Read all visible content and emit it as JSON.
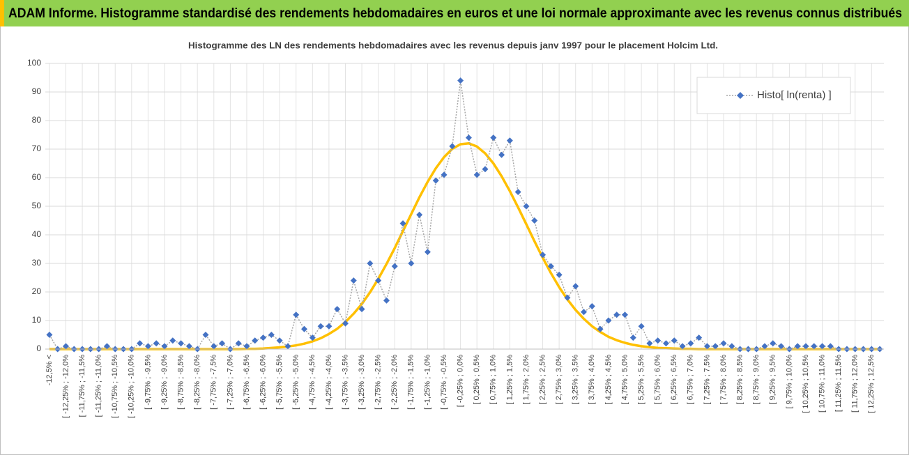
{
  "header": {
    "title": "ADAM Informe. Histogramme standardisé des rendements hebdomadaires en euros et une loi normale approximante avec les revenus connus distribués"
  },
  "chart_data": {
    "type": "line",
    "title": "Histogramme  des LN des rendements hebdomadaires avec les revenus depuis janv 1997 pour le placement Holcim Ltd.",
    "categories": [
      "-12,5% <",
      null,
      "[ -12,25% ; -12,0%",
      null,
      "[ -11,75% ; -11,5%",
      null,
      "[ -11,25% ; -11,0%",
      null,
      "[ -10,75% ; -10,5%",
      null,
      "[ -10,25% ; -10,0%",
      null,
      "[ -9,75% ; -9,5%",
      null,
      "[ -9,25% ; -9,0%",
      null,
      "[ -8,75% ; -8,5%",
      null,
      "[ -8,25% ; -8,0%",
      null,
      "[ -7,75% ; -7,5%",
      null,
      "[ -7,25% ; -7,0%",
      null,
      "[ -6,75% ; -6,5%",
      null,
      "[ -6,25% ; -6,0%",
      null,
      "[ -5,75% ; -5,5%",
      null,
      "[ -5,25% ; -5,0%",
      null,
      "[ -4,75% ; -4,5%",
      null,
      "[ -4,25% ; -4,0%",
      null,
      "[ -3,75% ; -3,5%",
      null,
      "[ -3,25% ; -3,0%",
      null,
      "[ -2,75% ; -2,5%",
      null,
      "[ -2,25% ; -2,0%",
      null,
      "[ -1,75% ; -1,5%",
      null,
      "[ -1,25% ; -1,0%",
      null,
      "[ -0,75% ; -0,5%",
      null,
      "[ -0,25% ; 0,0%",
      null,
      "[ 0,25% ; 0,5%",
      null,
      "[ 0,75% ; 1,0%",
      null,
      "[ 1,25% ; 1,5%",
      null,
      "[ 1,75% ; 2,0%",
      null,
      "[ 2,25% ; 2,5%",
      null,
      "[ 2,75% ; 3,0%",
      null,
      "[ 3,25% ; 3,5%",
      null,
      "[ 3,75% ; 4,0%",
      null,
      "[ 4,25% ; 4,5%",
      null,
      "[ 4,75% ; 5,0%",
      null,
      "[ 5,25% ; 5,5%",
      null,
      "[ 5,75% ; 6,0%",
      null,
      "[ 6,25% ; 6,5%",
      null,
      "[ 6,75% ; 7,0%",
      null,
      "[ 7,25% ; 7,5%",
      null,
      "[ 7,75% ; 8,0%",
      null,
      "[ 8,25% ; 8,5%",
      null,
      "[ 8,75% ; 9,0%",
      null,
      "[ 9,25% ; 9,5%",
      null,
      "[ 9,75% ; 10,0%",
      null,
      "[ 10,25% ; 10,5%",
      null,
      "[ 10,75% ; 11,0%",
      null,
      "[ 11,25% ; 11,5%",
      null,
      "[ 11,75% ; 12,0%",
      null,
      "[ 12,25% ; 12,5%",
      null
    ],
    "series": [
      {
        "name": "Histo[ ln(renta) ]",
        "color": "#4472c4",
        "line_color": "#a5a5a5",
        "values": [
          5,
          0,
          1,
          0,
          0,
          0,
          0,
          1,
          0,
          0,
          0,
          2,
          1,
          2,
          1,
          3,
          2,
          1,
          0,
          5,
          1,
          2,
          0,
          2,
          1,
          3,
          4,
          5,
          3,
          1,
          12,
          7,
          4,
          8,
          8,
          14,
          9,
          24,
          14,
          30,
          24,
          17,
          29,
          44,
          30,
          47,
          34,
          59,
          61,
          71,
          94,
          74,
          61,
          63,
          74,
          68,
          73,
          55,
          50,
          45,
          33,
          29,
          26,
          18,
          22,
          13,
          15,
          7,
          10,
          12,
          12,
          4,
          8,
          2,
          3,
          2,
          3,
          1,
          2,
          4,
          1,
          1,
          2,
          1,
          0,
          0,
          0,
          1,
          2,
          1,
          0,
          1,
          1,
          1,
          1,
          1,
          0,
          0,
          0,
          0,
          0,
          0
        ]
      },
      {
        "color": "#ffc000",
        "values": [
          0,
          0,
          0,
          0,
          0,
          0,
          0,
          0,
          0,
          0,
          0,
          0,
          0,
          0,
          0,
          0,
          0,
          0,
          0,
          0,
          0,
          0,
          0,
          0,
          0.1,
          0.1,
          0.2,
          0.4,
          0.6,
          0.9,
          1.3,
          1.9,
          2.7,
          3.8,
          5.3,
          7.1,
          9.5,
          12.4,
          15.8,
          19.9,
          24.6,
          29.8,
          35.4,
          41.3,
          47.2,
          53.1,
          58.5,
          63.3,
          67.2,
          70.1,
          71.7,
          72.0,
          70.9,
          68.5,
          65.0,
          60.5,
          55.3,
          49.6,
          43.7,
          37.7,
          32.0,
          26.6,
          21.7,
          17.4,
          13.7,
          10.6,
          8.0,
          6.0,
          4.3,
          3.1,
          2.2,
          1.5,
          1.0,
          0.7,
          0.4,
          0.3,
          0.2,
          0.1,
          0.1,
          0,
          0,
          0,
          0,
          0,
          0,
          0,
          0,
          0,
          0,
          0,
          0,
          0,
          0,
          0,
          0,
          0,
          0,
          0,
          0,
          0,
          0,
          0
        ]
      }
    ],
    "ylim": [
      0,
      100
    ],
    "yticks": [
      0,
      10,
      20,
      30,
      40,
      50,
      60,
      70,
      80,
      90,
      100
    ],
    "grid": true,
    "legend": "top-right"
  }
}
